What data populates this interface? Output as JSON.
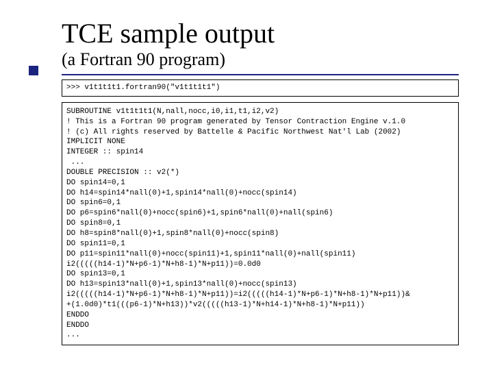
{
  "title": "TCE sample output",
  "subtitle": "(a Fortran 90 program)",
  "prompt_line": ">>> v1t1t1t1.fortran90(\"v1t1t1t1\")",
  "code_lines": [
    "SUBROUTINE v1t1t1t1(N,nall,nocc,i0,i1,t1,i2,v2)",
    "! This is a Fortran 90 program generated by Tensor Contraction Engine v.1.0",
    "! (c) All rights reserved by Battelle & Pacific Northwest Nat'l Lab (2002)",
    "IMPLICIT NONE",
    "INTEGER :: spin14",
    " ...",
    "DOUBLE PRECISION :: v2(*)",
    "DO spin14=0,1",
    "DO h14=spin14*nall(0)+1,spin14*nall(0)+nocc(spin14)",
    "DO spin6=0,1",
    "DO p6=spin6*nall(0)+nocc(spin6)+1,spin6*nall(0)+nall(spin6)",
    "DO spin8=0,1",
    "DO h8=spin8*nall(0)+1,spin8*nall(0)+nocc(spin8)",
    "DO spin11=0,1",
    "DO p11=spin11*nall(0)+nocc(spin11)+1,spin11*nall(0)+nall(spin11)",
    "i2(((((h14-1)*N+p6-1)*N+h8-1)*N+p11))=0.0d0",
    "DO spin13=0,1",
    "DO h13=spin13*nall(0)+1,spin13*nall(0)+nocc(spin13)",
    "i2(((((h14-1)*N+p6-1)*N+h8-1)*N+p11))=i2(((((h14-1)*N+p6-1)*N+h8-1)*N+p11))&",
    "+(1.0d0)*t1(((p6-1)*N+h13))*v2(((((h13-1)*N+h14-1)*N+h8-1)*N+p11))",
    "ENDDO",
    "ENDDO",
    "..."
  ],
  "colors": {
    "text": "#000000",
    "rule": "#1a237e",
    "bullet": "#1a237e",
    "background": "#ffffff"
  },
  "fonts": {
    "title_size_pt": 40,
    "subtitle_size_pt": 26,
    "code_size_pt": 11,
    "code_family": "Courier New"
  }
}
